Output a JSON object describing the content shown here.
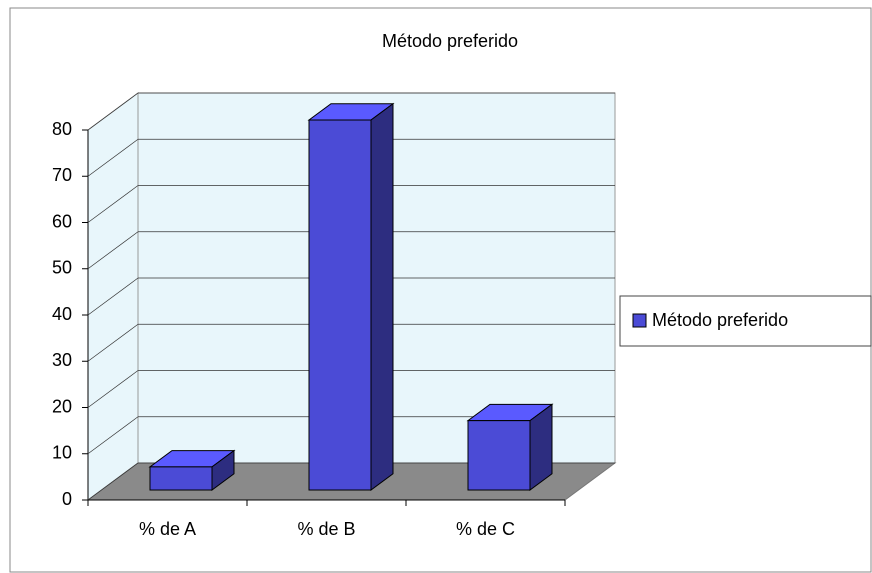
{
  "chart_data": {
    "type": "bar3d",
    "title": "Método preferido",
    "categories": [
      "% de A",
      "% de B",
      "% de C"
    ],
    "series": [
      {
        "name": "Método preferido",
        "color": "#4b4bd6",
        "values": [
          5,
          80,
          15
        ]
      }
    ],
    "ylim": [
      0,
      80
    ],
    "yticks": [
      0,
      10,
      20,
      30,
      40,
      50,
      60,
      70,
      80
    ],
    "grid": true,
    "legend": "right"
  }
}
